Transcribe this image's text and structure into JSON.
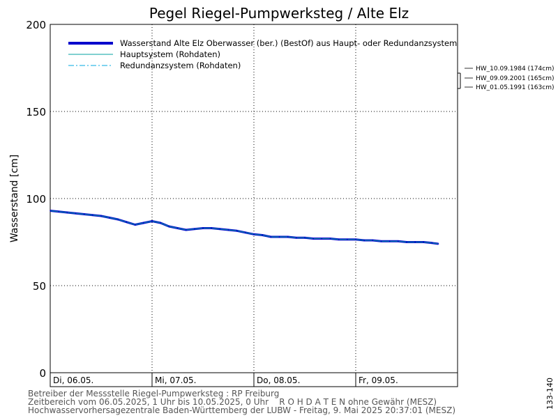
{
  "chart_data": {
    "type": "line",
    "title": "Pegel Riegel-Pumpwerksteg / Alte Elz",
    "ylabel": "Wasserstand [cm]",
    "ylim": [
      0,
      200
    ],
    "y_ticks": [
      0,
      50,
      100,
      150,
      200
    ],
    "x_ticks": [
      "Di, 06.05.",
      "Mi, 07.05.",
      "Do, 08.05.",
      "Fr, 09.05."
    ],
    "xlim_hours": [
      0,
      96
    ],
    "grid": true,
    "legend_position": "top-left",
    "legend": [
      {
        "label": "Wasserstand Alte Elz Oberwasser (ber.)  (BestOf)  aus Haupt- oder Redundanzsystem",
        "color": "#0000cc",
        "style": "thick"
      },
      {
        "label": "Hauptsystem (Rohdaten)",
        "color": "#00a0a0",
        "style": "solid"
      },
      {
        "label": "Redundanzsystem (Rohdaten)",
        "color": "#00a8e0",
        "style": "dashdot"
      }
    ],
    "x_hours": [
      0,
      2,
      4,
      6,
      8,
      10,
      12,
      14,
      16,
      18,
      20,
      22,
      24,
      26,
      28,
      30,
      32,
      34,
      36,
      38,
      40,
      42,
      44,
      46,
      48,
      50,
      52,
      54,
      56,
      58,
      60,
      62,
      64,
      66,
      68,
      70,
      72,
      74,
      76,
      78,
      80,
      82,
      84,
      86,
      88,
      90,
      91.5
    ],
    "series": [
      {
        "name": "Wasserstand Alte Elz Oberwasser (ber.)  (BestOf)  aus Haupt- oder Redundanzsystem",
        "values": [
          93,
          92.5,
          92,
          91.5,
          91,
          90.5,
          90,
          89,
          88,
          86.5,
          85,
          86,
          87,
          86,
          84,
          83,
          82,
          82.5,
          83,
          83,
          82.5,
          82,
          81.5,
          80.5,
          79.5,
          79,
          78,
          78,
          78,
          77.5,
          77.5,
          77,
          77,
          77,
          76.5,
          76.5,
          76.5,
          76,
          76,
          75.5,
          75.5,
          75.5,
          75,
          75,
          75,
          74.5,
          74
        ]
      }
    ],
    "historic_marks": [
      {
        "label": "HW_10.09.1984 (174cm)",
        "value": 174
      },
      {
        "label": "HW_09.09.2001 (165cm)",
        "value": 165
      },
      {
        "label": "HW_01.05.1991 (163cm)",
        "value": 163
      }
    ],
    "side_label": "133-140"
  },
  "footer": {
    "line1": "Betreiber der Messstelle Riegel-Pumpwerksteg : RP Freiburg",
    "line2": "Zeitbereich vom 06.05.2025, 1 Uhr bis 10.05.2025, 0 Uhr    R O H D A T E N ohne Gewähr (MESZ)",
    "line3": "Hochwasservorhersagezentrale Baden-Württemberg der LUBW - Freitag, 9. Mai 2025 20:37:01 (MESZ)"
  }
}
